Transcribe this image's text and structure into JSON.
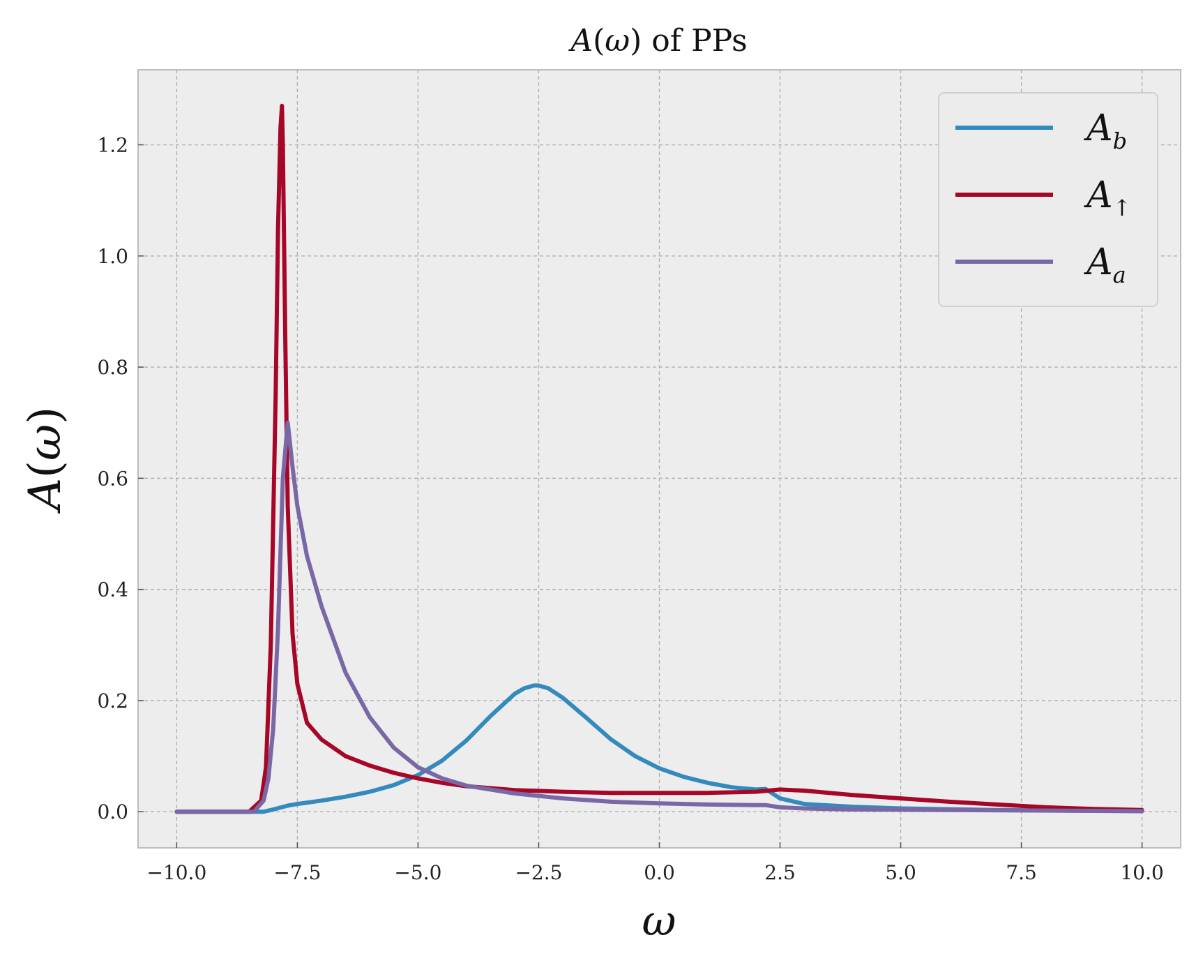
{
  "chart_data": {
    "type": "line",
    "title": "A(ω) of PPs",
    "xlabel": "ω",
    "ylabel": "A(ω)",
    "xlim": [
      -10.8,
      10.8
    ],
    "ylim": [
      -0.065,
      1.335
    ],
    "xticks": [
      -10.0,
      -7.5,
      -5.0,
      -2.5,
      0.0,
      2.5,
      5.0,
      7.5,
      10.0
    ],
    "xtick_labels": [
      "−10.0",
      "−7.5",
      "−5.0",
      "−2.5",
      "0.0",
      "2.5",
      "5.0",
      "7.5",
      "10.0"
    ],
    "yticks": [
      0.0,
      0.2,
      0.4,
      0.6,
      0.8,
      1.0,
      1.2
    ],
    "ytick_labels": [
      "0.0",
      "0.2",
      "0.4",
      "0.6",
      "0.8",
      "1.0",
      "1.2"
    ],
    "grid": true,
    "legend_position": "top-right",
    "background": "#ededed",
    "series": [
      {
        "name": "A_b",
        "label_main": "A",
        "label_sub": "b",
        "color": "#348abd",
        "x": [
          -10.0,
          -8.5,
          -8.2,
          -8.0,
          -7.7,
          -7.5,
          -7.0,
          -6.5,
          -6.0,
          -5.5,
          -5.0,
          -4.5,
          -4.0,
          -3.5,
          -3.0,
          -2.8,
          -2.6,
          -2.5,
          -2.3,
          -2.0,
          -1.5,
          -1.0,
          -0.5,
          0.0,
          0.5,
          1.0,
          1.5,
          2.0,
          2.2,
          2.5,
          3.0,
          4.0,
          5.0,
          7.0,
          10.0
        ],
        "y": [
          0.0,
          0.0,
          0.0,
          0.004,
          0.011,
          0.014,
          0.02,
          0.027,
          0.036,
          0.048,
          0.066,
          0.092,
          0.128,
          0.172,
          0.212,
          0.222,
          0.227,
          0.227,
          0.222,
          0.205,
          0.168,
          0.13,
          0.1,
          0.078,
          0.063,
          0.052,
          0.044,
          0.04,
          0.041,
          0.024,
          0.014,
          0.009,
          0.006,
          0.003,
          0.001
        ]
      },
      {
        "name": "A_↑",
        "label_main": "A",
        "label_sub": "↑",
        "color": "#a60628",
        "x": [
          -10.0,
          -8.5,
          -8.25,
          -8.15,
          -8.05,
          -7.95,
          -7.9,
          -7.85,
          -7.82,
          -7.8,
          -7.75,
          -7.7,
          -7.6,
          -7.5,
          -7.3,
          -7.0,
          -6.5,
          -6.0,
          -5.5,
          -5.0,
          -4.5,
          -4.0,
          -3.0,
          -2.0,
          -1.0,
          0.0,
          1.0,
          2.0,
          2.5,
          3.0,
          4.0,
          5.0,
          6.0,
          7.0,
          8.0,
          9.0,
          10.0
        ],
        "y": [
          0.0,
          0.0,
          0.02,
          0.08,
          0.3,
          0.75,
          1.05,
          1.23,
          1.27,
          1.2,
          0.85,
          0.55,
          0.32,
          0.23,
          0.16,
          0.13,
          0.1,
          0.083,
          0.07,
          0.06,
          0.052,
          0.046,
          0.039,
          0.036,
          0.034,
          0.034,
          0.034,
          0.036,
          0.04,
          0.038,
          0.03,
          0.024,
          0.018,
          0.013,
          0.008,
          0.005,
          0.003
        ]
      },
      {
        "name": "A_a",
        "label_main": "A",
        "label_sub": "a",
        "color": "#7a68a6",
        "x": [
          -10.0,
          -8.4,
          -8.2,
          -8.1,
          -8.0,
          -7.9,
          -7.8,
          -7.7,
          -7.6,
          -7.5,
          -7.3,
          -7.0,
          -6.5,
          -6.0,
          -5.5,
          -5.0,
          -4.5,
          -4.0,
          -3.0,
          -2.0,
          -1.0,
          0.0,
          1.0,
          2.0,
          2.2,
          2.5,
          3.0,
          4.0,
          6.0,
          10.0
        ],
        "y": [
          0.0,
          0.0,
          0.02,
          0.06,
          0.15,
          0.33,
          0.6,
          0.7,
          0.62,
          0.55,
          0.46,
          0.37,
          0.25,
          0.17,
          0.115,
          0.08,
          0.06,
          0.047,
          0.033,
          0.024,
          0.018,
          0.015,
          0.013,
          0.012,
          0.012,
          0.008,
          0.006,
          0.004,
          0.003,
          0.001
        ]
      }
    ]
  }
}
